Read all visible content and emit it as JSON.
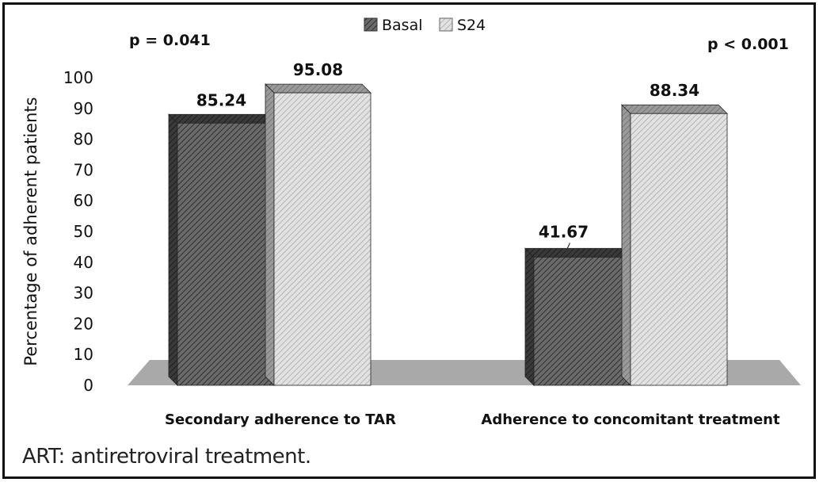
{
  "chart_data": {
    "type": "bar",
    "title": "",
    "xlabel": "",
    "ylabel": "Percentage of adherent patients",
    "ylim": [
      0,
      100
    ],
    "yticks": [
      0,
      10,
      20,
      30,
      40,
      50,
      60,
      70,
      80,
      90,
      100
    ],
    "grid": false,
    "legend_position": "top-center",
    "categories": [
      "Secondary adherence to TAR",
      "Adherence to concomitant treatment"
    ],
    "series": [
      {
        "name": "Basal",
        "values": [
          85.24,
          41.67
        ],
        "labels": [
          "85.24",
          "41.67"
        ],
        "color": "#555555"
      },
      {
        "name": "S24",
        "values": [
          95.08,
          88.34
        ],
        "labels": [
          "95.08",
          "88.34"
        ],
        "color": "#d2d2d2"
      }
    ],
    "annotations": [
      "p = 0.041",
      "p < 0.001"
    ]
  },
  "caption": "ART: antiretroviral treatment."
}
